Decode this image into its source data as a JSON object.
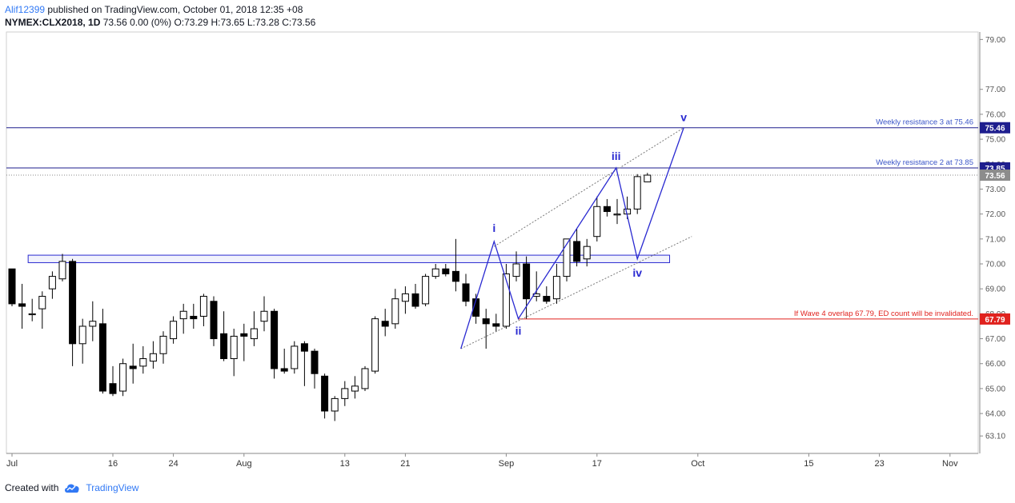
{
  "header": {
    "author": "Alif12399",
    "published_text": " published on TradingView.com, October 01, 2018 12:35 +08",
    "symbol": "NYMEX:CLX2018, 1D",
    "quote": "73.56 0.00 (0%) O:73.29 H:73.65 L:73.28 C:73.56"
  },
  "footer": {
    "created_with": "Created with",
    "brand": "TradingView"
  },
  "colors": {
    "up": "#ffffff",
    "down": "#000000",
    "wave": "#2a2ad1",
    "invalid": "#e0221e",
    "resistance": "#1e1e8e",
    "grid": "#dcdcdc"
  },
  "chart_data": {
    "type": "candlestick",
    "title": "NYMEX:CLX2018, 1D",
    "y_range": [
      62.4,
      79.3
    ],
    "y_ticks": [
      {
        "value": 63.1,
        "label": "63.10"
      },
      {
        "value": 64.0,
        "label": "64.00"
      },
      {
        "value": 65.0,
        "label": "65.00"
      },
      {
        "value": 66.0,
        "label": "66.00"
      },
      {
        "value": 67.0,
        "label": "67.00"
      },
      {
        "value": 68.0,
        "label": "68.00"
      },
      {
        "value": 69.0,
        "label": "69.00"
      },
      {
        "value": 70.0,
        "label": "70.00"
      },
      {
        "value": 71.0,
        "label": "71.00"
      },
      {
        "value": 72.0,
        "label": "72.00"
      },
      {
        "value": 73.0,
        "label": "73.00"
      },
      {
        "value": 74.0,
        "label": "74.00"
      },
      {
        "value": 75.0,
        "label": "75.00"
      },
      {
        "value": 76.0,
        "label": "76.00"
      },
      {
        "value": 77.0,
        "label": "77.00"
      },
      {
        "value": 79.0,
        "label": "79.00"
      }
    ],
    "x_range": [
      0,
      86
    ],
    "x_ticks": [
      {
        "index": 0,
        "label": "Jul"
      },
      {
        "index": 10,
        "label": "16"
      },
      {
        "index": 16,
        "label": "24"
      },
      {
        "index": 23,
        "label": "Aug"
      },
      {
        "index": 33,
        "label": "13"
      },
      {
        "index": 39,
        "label": "21"
      },
      {
        "index": 49,
        "label": "Sep"
      },
      {
        "index": 58,
        "label": "17"
      },
      {
        "index": 68,
        "label": "Oct"
      },
      {
        "index": 79,
        "label": "15"
      },
      {
        "index": 86,
        "label": "23"
      },
      {
        "index": 93,
        "label": "Nov"
      }
    ],
    "candles": [
      {
        "o": 69.8,
        "h": 69.8,
        "l": 68.3,
        "c": 68.4
      },
      {
        "o": 68.4,
        "h": 69.2,
        "l": 67.4,
        "c": 68.3
      },
      {
        "o": 68.0,
        "h": 68.6,
        "l": 67.7,
        "c": 68.0
      },
      {
        "o": 68.2,
        "h": 68.9,
        "l": 67.4,
        "c": 68.7
      },
      {
        "o": 69.0,
        "h": 69.7,
        "l": 68.6,
        "c": 69.5
      },
      {
        "o": 69.4,
        "h": 70.4,
        "l": 69.3,
        "c": 70.1
      },
      {
        "o": 70.1,
        "h": 70.2,
        "l": 65.9,
        "c": 66.8
      },
      {
        "o": 66.8,
        "h": 67.8,
        "l": 66.0,
        "c": 67.5
      },
      {
        "o": 67.5,
        "h": 68.5,
        "l": 66.9,
        "c": 67.7
      },
      {
        "o": 67.6,
        "h": 68.2,
        "l": 64.8,
        "c": 64.9
      },
      {
        "o": 65.2,
        "h": 65.9,
        "l": 64.7,
        "c": 64.8
      },
      {
        "o": 64.9,
        "h": 66.2,
        "l": 64.7,
        "c": 66.0
      },
      {
        "o": 65.9,
        "h": 66.8,
        "l": 65.2,
        "c": 65.8
      },
      {
        "o": 65.9,
        "h": 66.7,
        "l": 65.6,
        "c": 66.2
      },
      {
        "o": 66.1,
        "h": 66.9,
        "l": 65.8,
        "c": 66.4
      },
      {
        "o": 66.4,
        "h": 67.3,
        "l": 66.0,
        "c": 67.1
      },
      {
        "o": 67.0,
        "h": 67.9,
        "l": 66.8,
        "c": 67.7
      },
      {
        "o": 67.8,
        "h": 68.4,
        "l": 67.2,
        "c": 68.1
      },
      {
        "o": 67.9,
        "h": 68.4,
        "l": 67.4,
        "c": 67.8
      },
      {
        "o": 67.9,
        "h": 68.8,
        "l": 67.5,
        "c": 68.7
      },
      {
        "o": 68.5,
        "h": 68.7,
        "l": 66.7,
        "c": 67.0
      },
      {
        "o": 67.2,
        "h": 68.1,
        "l": 66.1,
        "c": 66.2
      },
      {
        "o": 66.2,
        "h": 67.4,
        "l": 65.5,
        "c": 67.1
      },
      {
        "o": 67.2,
        "h": 67.6,
        "l": 66.1,
        "c": 67.1
      },
      {
        "o": 67.0,
        "h": 68.1,
        "l": 66.7,
        "c": 67.4
      },
      {
        "o": 67.7,
        "h": 68.7,
        "l": 67.3,
        "c": 68.1
      },
      {
        "o": 68.1,
        "h": 68.2,
        "l": 65.4,
        "c": 65.8
      },
      {
        "o": 65.8,
        "h": 66.6,
        "l": 65.6,
        "c": 65.7
      },
      {
        "o": 65.8,
        "h": 66.9,
        "l": 65.6,
        "c": 66.7
      },
      {
        "o": 66.8,
        "h": 66.9,
        "l": 65.1,
        "c": 66.5
      },
      {
        "o": 66.5,
        "h": 66.6,
        "l": 65.0,
        "c": 65.6
      },
      {
        "o": 65.5,
        "h": 65.6,
        "l": 63.8,
        "c": 64.1
      },
      {
        "o": 64.1,
        "h": 64.7,
        "l": 63.7,
        "c": 64.6
      },
      {
        "o": 64.6,
        "h": 65.3,
        "l": 64.3,
        "c": 65.0
      },
      {
        "o": 64.9,
        "h": 65.5,
        "l": 64.6,
        "c": 65.1
      },
      {
        "o": 65.0,
        "h": 65.9,
        "l": 64.9,
        "c": 65.8
      },
      {
        "o": 65.7,
        "h": 67.9,
        "l": 65.6,
        "c": 67.8
      },
      {
        "o": 67.7,
        "h": 68.2,
        "l": 67.1,
        "c": 67.5
      },
      {
        "o": 67.6,
        "h": 69.0,
        "l": 67.4,
        "c": 68.6
      },
      {
        "o": 68.5,
        "h": 69.1,
        "l": 68.0,
        "c": 68.8
      },
      {
        "o": 68.8,
        "h": 69.2,
        "l": 68.2,
        "c": 68.3
      },
      {
        "o": 68.4,
        "h": 69.6,
        "l": 68.3,
        "c": 69.5
      },
      {
        "o": 69.5,
        "h": 70.0,
        "l": 69.4,
        "c": 69.8
      },
      {
        "o": 69.8,
        "h": 70.0,
        "l": 69.5,
        "c": 69.6
      },
      {
        "o": 69.7,
        "h": 71.0,
        "l": 68.9,
        "c": 69.3
      },
      {
        "o": 69.2,
        "h": 69.6,
        "l": 68.3,
        "c": 68.5
      },
      {
        "o": 68.6,
        "h": 68.8,
        "l": 67.6,
        "c": 67.9
      },
      {
        "o": 67.8,
        "h": 68.2,
        "l": 66.6,
        "c": 67.6
      },
      {
        "o": 67.6,
        "h": 68.0,
        "l": 67.3,
        "c": 67.5
      },
      {
        "o": 67.5,
        "h": 70.0,
        "l": 67.4,
        "c": 69.6
      },
      {
        "o": 69.5,
        "h": 70.5,
        "l": 69.3,
        "c": 70.0
      },
      {
        "o": 70.0,
        "h": 70.3,
        "l": 67.8,
        "c": 68.6
      },
      {
        "o": 68.7,
        "h": 69.7,
        "l": 68.5,
        "c": 68.8
      },
      {
        "o": 68.7,
        "h": 69.1,
        "l": 68.4,
        "c": 68.5
      },
      {
        "o": 68.6,
        "h": 70.0,
        "l": 68.4,
        "c": 69.5
      },
      {
        "o": 69.5,
        "h": 71.0,
        "l": 69.3,
        "c": 71.0
      },
      {
        "o": 70.9,
        "h": 71.4,
        "l": 69.9,
        "c": 70.1
      },
      {
        "o": 70.2,
        "h": 71.0,
        "l": 69.9,
        "c": 70.7
      },
      {
        "o": 71.1,
        "h": 72.7,
        "l": 70.9,
        "c": 72.3
      },
      {
        "o": 72.3,
        "h": 72.6,
        "l": 71.9,
        "c": 72.1
      },
      {
        "o": 72.0,
        "h": 72.6,
        "l": 71.6,
        "c": 72.0
      },
      {
        "o": 72.0,
        "h": 72.7,
        "l": 71.8,
        "c": 72.2
      },
      {
        "o": 72.2,
        "h": 73.6,
        "l": 72.0,
        "c": 73.5
      },
      {
        "o": 73.29,
        "h": 73.65,
        "l": 73.28,
        "c": 73.56
      }
    ],
    "candle_index_offset": 0,
    "levels": [
      {
        "value": 75.46,
        "label": "Weekly resistance 3 at 75.46",
        "price_tag": "75.46"
      },
      {
        "value": 73.85,
        "label": "Weekly resistance 2 at 73.85",
        "price_tag": "73.85"
      },
      {
        "value": 67.79,
        "label": "If Wave 4 overlap 67.79, ED count will be invalidated.",
        "price_tag": "67.79"
      }
    ],
    "last_price": {
      "value": 73.56,
      "label": "73.56"
    },
    "support_zone": {
      "from_index": 1.6,
      "to_index": 65.2,
      "low": 70.05,
      "high": 70.35
    },
    "waves": [
      {
        "label": "i",
        "index": 47.8,
        "value": 70.9
      },
      {
        "label": "ii",
        "index": 50.2,
        "value": 67.8
      },
      {
        "label": "iii",
        "index": 59.9,
        "value": 73.85
      },
      {
        "label": "iv",
        "index": 62.0,
        "value": 70.2
      },
      {
        "label": "v",
        "index": 66.6,
        "value": 75.46
      }
    ],
    "wave_path_start": {
      "index": 44.5,
      "value": 66.6
    },
    "channel_upper": [
      {
        "index": 47.8,
        "value": 70.7
      },
      {
        "index": 66.6,
        "value": 75.46
      }
    ],
    "channel_lower": [
      {
        "index": 44.5,
        "value": 66.6
      },
      {
        "index": 67.4,
        "value": 71.1
      }
    ]
  }
}
